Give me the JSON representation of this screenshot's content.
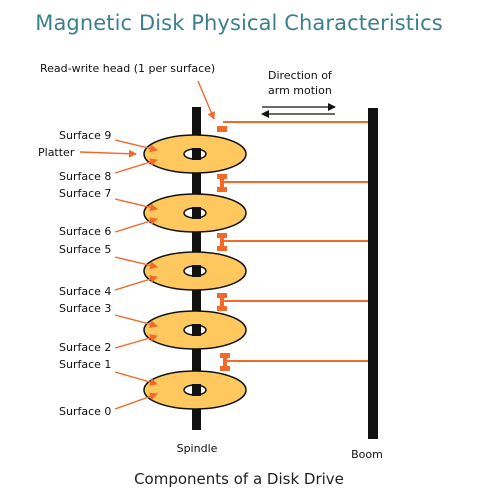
{
  "title": "Magnetic Disk Physical Characteristics",
  "caption": "Components of a Disk Drive",
  "colors": {
    "title": "#3d7f8f",
    "platter_fill": "#ffc85e",
    "platter_stroke": "#111111",
    "head": "#f26a2a",
    "arrow": "#f26a2a",
    "structure": "#111111"
  },
  "labels": {
    "head": "Read-write head (1 per surface)",
    "direction_line1": "Direction of",
    "direction_line2": "arm motion",
    "platter": "Platter",
    "spindle": "Spindle",
    "boom": "Boom",
    "surfaces": [
      "Surface 9",
      "Surface 8",
      "Surface 7",
      "Surface 6",
      "Surface 5",
      "Surface 4",
      "Surface 3",
      "Surface 2",
      "Surface 1",
      "Surface 0"
    ]
  }
}
